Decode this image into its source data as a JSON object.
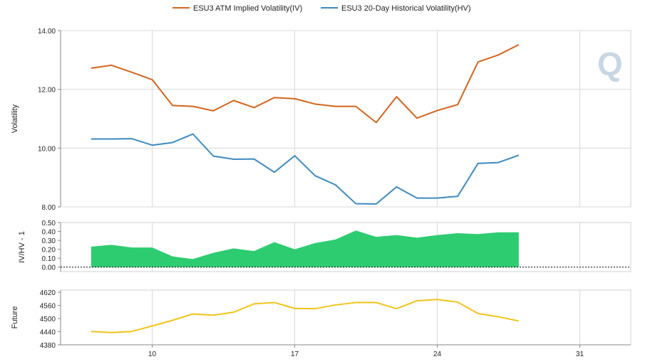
{
  "chart_data": [
    {
      "type": "line",
      "legend": [
        "ESU3 ATM Implied Volatility(IV)",
        "ESU3 20-Day Historical Volatility(HV)"
      ],
      "legend_position": "top-center",
      "ylabel": "Volatility",
      "ylim": [
        8,
        14
      ],
      "yticks": [
        "8.00",
        "10.00",
        "12.00",
        "14.00"
      ],
      "x": [
        7,
        8,
        9,
        10,
        11,
        12,
        13,
        14,
        15,
        16,
        17,
        18,
        19,
        20,
        21,
        22,
        23,
        24,
        25,
        26,
        27,
        28
      ],
      "series": [
        {
          "name": "ESU3 ATM Implied Volatility(IV)",
          "values": [
            12.72,
            12.82,
            12.58,
            12.33,
            11.45,
            11.42,
            11.27,
            11.62,
            11.38,
            11.72,
            11.68,
            11.5,
            11.42,
            11.42,
            10.87,
            11.75,
            11.02,
            11.28,
            11.48,
            12.93,
            13.17,
            13.52
          ]
        },
        {
          "name": "ESU3 20-Day Historical Volatility(HV)",
          "values": [
            10.31,
            10.31,
            10.32,
            10.1,
            10.19,
            10.48,
            9.73,
            9.62,
            9.63,
            9.18,
            9.74,
            9.06,
            8.75,
            8.11,
            8.1,
            8.68,
            8.3,
            8.3,
            8.36,
            9.48,
            9.51,
            9.76
          ]
        }
      ],
      "colors": [
        "#d2651f",
        "#3d8ac0"
      ],
      "grid": true
    },
    {
      "type": "area",
      "ylabel": "IV/HV - 1",
      "ylim": [
        -0.05,
        0.5
      ],
      "yticks": [
        "0.00",
        "0.10",
        "0.20",
        "0.30",
        "0.40",
        "0.50"
      ],
      "x": [
        7,
        8,
        9,
        10,
        11,
        12,
        13,
        14,
        15,
        16,
        17,
        18,
        19,
        20,
        21,
        22,
        23,
        24,
        25,
        26,
        27,
        28
      ],
      "values": [
        0.23,
        0.25,
        0.22,
        0.22,
        0.12,
        0.09,
        0.16,
        0.21,
        0.18,
        0.28,
        0.2,
        0.27,
        0.31,
        0.41,
        0.34,
        0.36,
        0.33,
        0.36,
        0.38,
        0.37,
        0.39,
        0.39
      ],
      "color": "#2ecc71",
      "zero_line": "dashed"
    },
    {
      "type": "line",
      "ylabel": "Future",
      "ylim": [
        4380,
        4630
      ],
      "yticks": [
        "4380",
        "4440",
        "4500",
        "4560",
        "4620"
      ],
      "x": [
        7,
        8,
        9,
        10,
        11,
        12,
        13,
        14,
        15,
        16,
        17,
        18,
        19,
        20,
        21,
        22,
        23,
        24,
        25,
        26,
        27,
        28
      ],
      "values": [
        4441,
        4436,
        4441,
        4466,
        4492,
        4521,
        4515,
        4529,
        4567,
        4573,
        4546,
        4545,
        4562,
        4573,
        4573,
        4545,
        4581,
        4587,
        4575,
        4523,
        4508,
        4489
      ],
      "color": "#f0c419",
      "xticks": [
        "10",
        "17",
        "24",
        "31"
      ],
      "xtick_positions": [
        10,
        17,
        24,
        31
      ]
    }
  ],
  "colors": {
    "grid": "#d9d9d9",
    "axis": "#888888",
    "text": "#222222",
    "watermark": "#c9d7e3"
  }
}
